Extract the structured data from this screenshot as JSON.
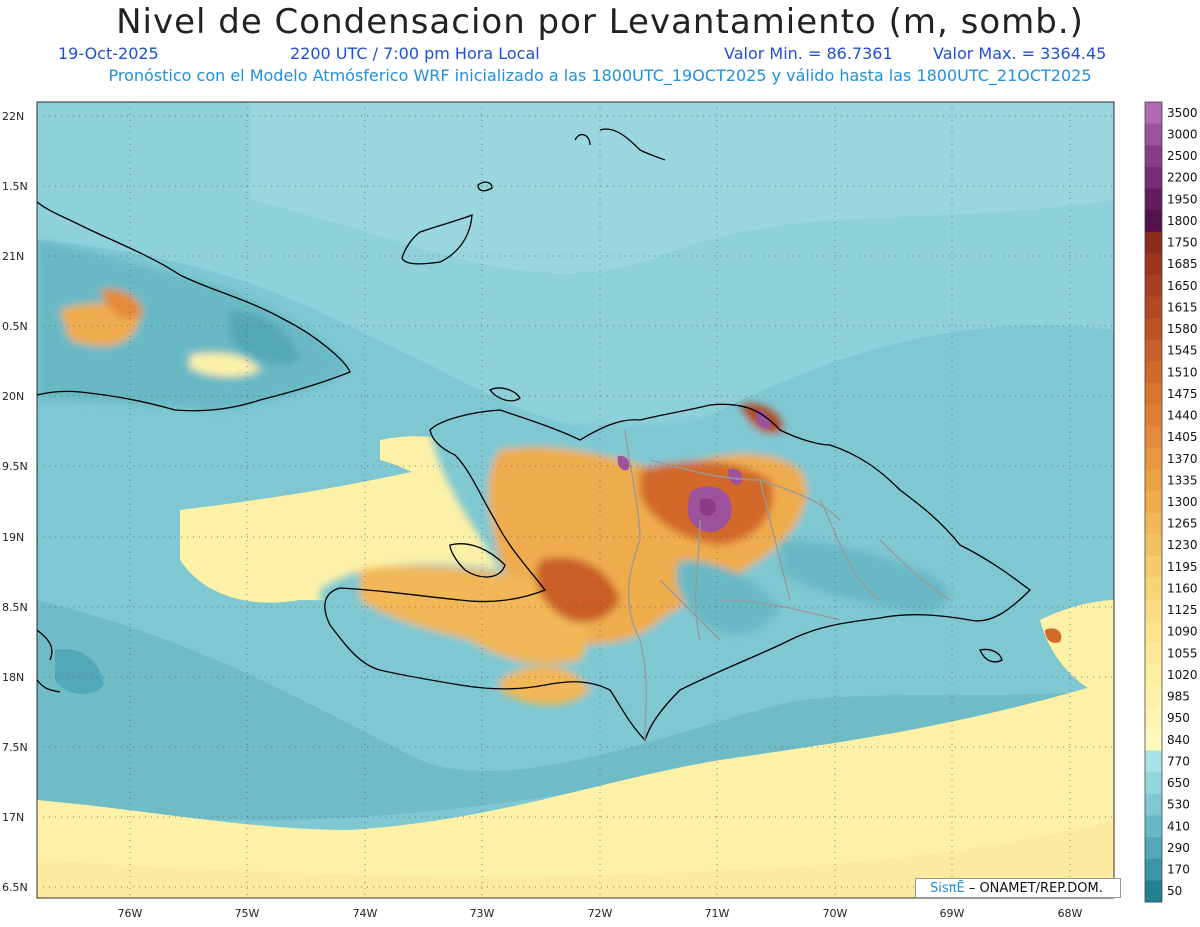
{
  "header": {
    "title": "Nivel de Condensacion por Levantamiento (m, somb.)",
    "date": "19-Oct-2025",
    "time": "2200 UTC / 7:00 pm Hora Local",
    "min_label": "Valor Min. = 86.7361",
    "max_label": "Valor Max. = 3364.45",
    "description": "Pronóstico con el Modelo Atmósferico WRF inicializado a las 1800UTC_19OCT2025 y válido hasta las  1800UTC_21OCT2025"
  },
  "axes": {
    "lat_labels": [
      "22N",
      "1.5N",
      "21N",
      "0.5N",
      "20N",
      "9.5N",
      "19N",
      "8.5N",
      "18N",
      "7.5N",
      "17N",
      "6.5N"
    ],
    "lon_labels": [
      "76W",
      "75W",
      "74W",
      "73W",
      "72W",
      "71W",
      "70W",
      "69W",
      "68W"
    ]
  },
  "colorbar": {
    "levels": [
      {
        "label": "3500",
        "color": "#b06ab0"
      },
      {
        "label": "3000",
        "color": "#9c529c"
      },
      {
        "label": "2500",
        "color": "#8a3d86"
      },
      {
        "label": "2200",
        "color": "#772c74"
      },
      {
        "label": "1950",
        "color": "#641c5e"
      },
      {
        "label": "1800",
        "color": "#52124a"
      },
      {
        "label": "1750",
        "color": "#8f2a1e"
      },
      {
        "label": "1685",
        "color": "#9c3420"
      },
      {
        "label": "1650",
        "color": "#a83e22"
      },
      {
        "label": "1615",
        "color": "#b44824"
      },
      {
        "label": "1580",
        "color": "#bf5326"
      },
      {
        "label": "1545",
        "color": "#c95e28"
      },
      {
        "label": "1510",
        "color": "#d2692a"
      },
      {
        "label": "1475",
        "color": "#da742e"
      },
      {
        "label": "1440",
        "color": "#e07f33"
      },
      {
        "label": "1405",
        "color": "#e58a38"
      },
      {
        "label": "1370",
        "color": "#e9963e"
      },
      {
        "label": "1335",
        "color": "#eca145"
      },
      {
        "label": "1300",
        "color": "#efac4d"
      },
      {
        "label": "1265",
        "color": "#f2b756"
      },
      {
        "label": "1230",
        "color": "#f4c160"
      },
      {
        "label": "1195",
        "color": "#f6cb6a"
      },
      {
        "label": "1160",
        "color": "#f8d475"
      },
      {
        "label": "1125",
        "color": "#fadc80"
      },
      {
        "label": "1090",
        "color": "#fbe38b"
      },
      {
        "label": "1055",
        "color": "#fce996"
      },
      {
        "label": "1020",
        "color": "#fdeea0"
      },
      {
        "label": "985",
        "color": "#fdf2a9"
      },
      {
        "label": "950",
        "color": "#fef5b2"
      },
      {
        "label": "840",
        "color": "#fef8bc"
      },
      {
        "label": "770",
        "color": "#a8e2e8"
      },
      {
        "label": "650",
        "color": "#93d6de"
      },
      {
        "label": "530",
        "color": "#7fc8d2"
      },
      {
        "label": "410",
        "color": "#69b9c5"
      },
      {
        "label": "290",
        "color": "#52a8b6"
      },
      {
        "label": "170",
        "color": "#3b96a6"
      },
      {
        "label": "50",
        "color": "#237f93"
      }
    ]
  },
  "credit": {
    "brand": "SisπĒ",
    "org": " – ONAMET/REP.DOM."
  },
  "colors": {
    "ocean": "#7fc8d2",
    "land_outline": "#000000",
    "province_border": "#999999"
  }
}
